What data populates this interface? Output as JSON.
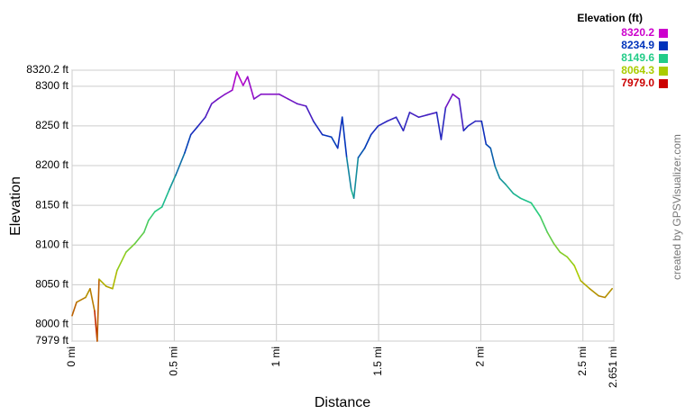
{
  "chart_data": {
    "type": "line",
    "x_label": "Distance",
    "y_label": "Elevation",
    "credit": "created by GPSVisualizer.com",
    "legend_title": "Elevation (ft)",
    "color_scale": [
      {
        "value": 8320.2,
        "label": "8320.2",
        "color": "#cc00cc"
      },
      {
        "value": 8234.9,
        "label": "8234.9",
        "color": "#0033bb"
      },
      {
        "value": 8149.6,
        "label": "8149.6",
        "color": "#22cc88"
      },
      {
        "value": 8064.3,
        "label": "8064.3",
        "color": "#aacc00"
      },
      {
        "value": 7979,
        "label": "7979.0",
        "color": "#cc0000"
      }
    ],
    "xlim": [
      0,
      2.651
    ],
    "ylim": [
      7979,
      8320.2
    ],
    "xticks": [
      {
        "value": 0,
        "label": "0 mi"
      },
      {
        "value": 0.5,
        "label": "0.5 mi"
      },
      {
        "value": 1,
        "label": "1 mi"
      },
      {
        "value": 1.5,
        "label": "1.5 mi"
      },
      {
        "value": 2,
        "label": "2 mi"
      },
      {
        "value": 2.5,
        "label": "2.5 mi"
      },
      {
        "value": 2.651,
        "label": "2.651 mi"
      }
    ],
    "yticks": [
      {
        "value": 7979,
        "label": "7979 ft"
      },
      {
        "value": 8000,
        "label": "8000 ft"
      },
      {
        "value": 8050,
        "label": "8050 ft"
      },
      {
        "value": 8100,
        "label": "8100 ft"
      },
      {
        "value": 8150,
        "label": "8150 ft"
      },
      {
        "value": 8200,
        "label": "8200 ft"
      },
      {
        "value": 8250,
        "label": "8250 ft"
      },
      {
        "value": 8300,
        "label": "8300 ft"
      },
      {
        "value": 8320.2,
        "label": "8320.2 ft"
      }
    ],
    "grid": true,
    "x": [
      0,
      0.022,
      0.066,
      0.088,
      0.11,
      0.123,
      0.132,
      0.167,
      0.198,
      0.22,
      0.264,
      0.308,
      0.352,
      0.374,
      0.405,
      0.44,
      0.476,
      0.507,
      0.551,
      0.581,
      0.617,
      0.652,
      0.683,
      0.714,
      0.749,
      0.784,
      0.806,
      0.837,
      0.859,
      0.89,
      0.925,
      0.969,
      1.013,
      1.057,
      1.101,
      1.145,
      1.181,
      1.225,
      1.269,
      1.3,
      1.322,
      1.344,
      1.366,
      1.379,
      1.4,
      1.432,
      1.463,
      1.498,
      1.542,
      1.586,
      1.621,
      1.652,
      1.696,
      1.74,
      1.784,
      1.806,
      1.828,
      1.863,
      1.894,
      1.916,
      1.938,
      1.974,
      2.004,
      2.026,
      2.048,
      2.07,
      2.093,
      2.123,
      2.159,
      2.194,
      2.247,
      2.291,
      2.326,
      2.357,
      2.388,
      2.423,
      2.458,
      2.489,
      2.533,
      2.577,
      2.608,
      2.643
    ],
    "values": [
      8011,
      8028,
      8034,
      8045,
      8017,
      7979,
      8057,
      8048,
      8045,
      8068,
      8091,
      8102,
      8116,
      8131,
      8142,
      8148,
      8170,
      8188,
      8216,
      8239,
      8250,
      8261,
      8278,
      8284,
      8290,
      8295,
      8318,
      8301,
      8312,
      8284,
      8290,
      8290,
      8290,
      8284,
      8278,
      8275,
      8256,
      8239,
      8236,
      8222,
      8261,
      8210,
      8170,
      8159,
      8210,
      8222,
      8239,
      8250,
      8256,
      8261,
      8244,
      8267,
      8261,
      8264,
      8267,
      8233,
      8273,
      8290,
      8284,
      8244,
      8250,
      8256,
      8256,
      8227,
      8222,
      8199,
      8184,
      8176,
      8165,
      8159,
      8153,
      8136,
      8116,
      8102,
      8091,
      8085,
      8074,
      8055,
      8045,
      8036,
      8034,
      8045
    ]
  }
}
